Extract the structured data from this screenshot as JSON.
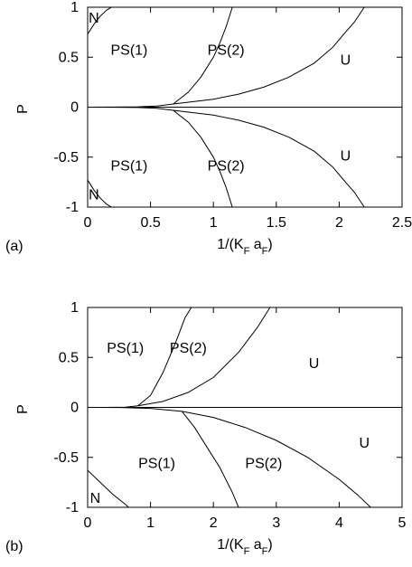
{
  "chart_data": [
    {
      "type": "line",
      "panel_label": "(a)",
      "xlabel": "1/(K_F a_F)",
      "ylabel": "P",
      "xlim": [
        0,
        2.5
      ],
      "ylim": [
        -1,
        1
      ],
      "x_ticks": [
        0,
        0.5,
        1,
        1.5,
        2,
        2.5
      ],
      "x_tick_labels": [
        "0",
        "0.5",
        "1",
        "1.5",
        "2",
        "2.5"
      ],
      "y_ticks": [
        -1,
        -0.5,
        0,
        0.5,
        1
      ],
      "y_tick_labels": [
        "-1",
        "-0.5",
        "0",
        "0.5",
        "1"
      ],
      "grid": false,
      "regions": [
        {
          "label": "N",
          "x": 0.05,
          "y": 0.9
        },
        {
          "label": "PS(1)",
          "x": 0.33,
          "y": 0.58
        },
        {
          "label": "PS(2)",
          "x": 1.1,
          "y": 0.58
        },
        {
          "label": "U",
          "x": 2.05,
          "y": 0.48
        },
        {
          "label": "PS(1)",
          "x": 0.33,
          "y": -0.58
        },
        {
          "label": "PS(2)",
          "x": 1.1,
          "y": -0.58
        },
        {
          "label": "U",
          "x": 2.05,
          "y": -0.48
        },
        {
          "label": "N",
          "x": 0.05,
          "y": -0.87
        }
      ],
      "series": [
        {
          "points": [
            [
              0,
              0.73
            ],
            [
              0.05,
              0.83
            ],
            [
              0.1,
              0.91
            ],
            [
              0.15,
              0.97
            ],
            [
              0.19,
              1.0
            ]
          ]
        },
        {
          "points": [
            [
              0,
              0
            ],
            [
              0.2,
              0.0005
            ],
            [
              0.4,
              0.004
            ],
            [
              0.55,
              0.012
            ],
            [
              0.68,
              0.032
            ]
          ]
        },
        {
          "points": [
            [
              0.68,
              0.032
            ],
            [
              0.8,
              0.15
            ],
            [
              0.9,
              0.3
            ],
            [
              1.0,
              0.5
            ],
            [
              1.05,
              0.64
            ],
            [
              1.1,
              0.8
            ],
            [
              1.15,
              1.0
            ]
          ]
        },
        {
          "points": [
            [
              0.68,
              0.032
            ],
            [
              1.0,
              0.08
            ],
            [
              1.2,
              0.13
            ],
            [
              1.4,
              0.2
            ],
            [
              1.6,
              0.3
            ],
            [
              1.8,
              0.44
            ],
            [
              1.95,
              0.6
            ],
            [
              2.05,
              0.75
            ],
            [
              2.12,
              0.85
            ],
            [
              2.2,
              1.0
            ]
          ]
        },
        {
          "points": [
            [
              0,
              0
            ],
            [
              0.2,
              -0.0005
            ],
            [
              0.4,
              -0.004
            ],
            [
              0.55,
              -0.012
            ],
            [
              0.68,
              -0.032
            ]
          ]
        },
        {
          "points": [
            [
              0.68,
              -0.032
            ],
            [
              0.8,
              -0.15
            ],
            [
              0.9,
              -0.3
            ],
            [
              1.0,
              -0.5
            ],
            [
              1.05,
              -0.64
            ],
            [
              1.1,
              -0.8
            ],
            [
              1.15,
              -1.0
            ]
          ]
        },
        {
          "points": [
            [
              0.68,
              -0.032
            ],
            [
              1.0,
              -0.08
            ],
            [
              1.2,
              -0.13
            ],
            [
              1.4,
              -0.2
            ],
            [
              1.6,
              -0.3
            ],
            [
              1.8,
              -0.44
            ],
            [
              1.95,
              -0.6
            ],
            [
              2.05,
              -0.75
            ],
            [
              2.12,
              -0.85
            ],
            [
              2.2,
              -1.0
            ]
          ]
        },
        {
          "points": [
            [
              0,
              -0.73
            ],
            [
              0.05,
              -0.83
            ],
            [
              0.1,
              -0.91
            ],
            [
              0.15,
              -0.97
            ],
            [
              0.19,
              -1.0
            ]
          ]
        }
      ],
      "zero_line": true
    },
    {
      "type": "line",
      "panel_label": "(b)",
      "xlabel": "1/(K_F a_F)",
      "ylabel": "P",
      "xlim": [
        0,
        5
      ],
      "ylim": [
        -1,
        1
      ],
      "x_ticks": [
        0,
        1,
        2,
        3,
        4,
        5
      ],
      "x_tick_labels": [
        "0",
        "1",
        "2",
        "3",
        "4",
        "5"
      ],
      "y_ticks": [
        -1,
        -0.5,
        0,
        0.5,
        1
      ],
      "y_tick_labels": [
        "-1",
        "-0.5",
        "0",
        "0.5",
        "1"
      ],
      "grid": false,
      "regions": [
        {
          "label": "PS(1)",
          "x": 0.6,
          "y": 0.6
        },
        {
          "label": "PS(2)",
          "x": 1.6,
          "y": 0.6
        },
        {
          "label": "U",
          "x": 3.6,
          "y": 0.45
        },
        {
          "label": "PS(1)",
          "x": 1.1,
          "y": -0.55
        },
        {
          "label": "PS(2)",
          "x": 2.8,
          "y": -0.55
        },
        {
          "label": "U",
          "x": 4.4,
          "y": -0.35
        },
        {
          "label": "N",
          "x": 0.12,
          "y": -0.9
        }
      ],
      "series": [
        {
          "points": [
            [
              0,
              0
            ],
            [
              0.3,
              0.0003
            ],
            [
              0.6,
              0.003
            ],
            [
              0.8,
              0.015
            ]
          ]
        },
        {
          "points": [
            [
              0.8,
              0.015
            ],
            [
              1.0,
              0.12
            ],
            [
              1.2,
              0.35
            ],
            [
              1.4,
              0.65
            ],
            [
              1.55,
              0.9
            ],
            [
              1.65,
              1.0
            ]
          ]
        },
        {
          "points": [
            [
              0.8,
              0.015
            ],
            [
              1.2,
              0.06
            ],
            [
              1.6,
              0.15
            ],
            [
              2.0,
              0.3
            ],
            [
              2.4,
              0.55
            ],
            [
              2.7,
              0.8
            ],
            [
              2.9,
              1.0
            ]
          ]
        },
        {
          "points": [
            [
              0,
              0
            ],
            [
              0.5,
              -0.001
            ],
            [
              1.0,
              -0.01
            ],
            [
              1.5,
              -0.04
            ]
          ]
        },
        {
          "points": [
            [
              1.5,
              -0.04
            ],
            [
              1.7,
              -0.2
            ],
            [
              1.9,
              -0.4
            ],
            [
              2.1,
              -0.6
            ],
            [
              2.3,
              -0.85
            ],
            [
              2.4,
              -1.0
            ]
          ]
        },
        {
          "points": [
            [
              1.5,
              -0.04
            ],
            [
              2.0,
              -0.1
            ],
            [
              2.5,
              -0.2
            ],
            [
              3.0,
              -0.33
            ],
            [
              3.5,
              -0.5
            ],
            [
              4.0,
              -0.72
            ],
            [
              4.3,
              -0.88
            ],
            [
              4.5,
              -1.0
            ]
          ]
        },
        {
          "points": [
            [
              0,
              -0.63
            ],
            [
              0.2,
              -0.75
            ],
            [
              0.4,
              -0.87
            ],
            [
              0.6,
              -0.97
            ],
            [
              0.65,
              -1.0
            ]
          ]
        }
      ],
      "zero_line": true
    }
  ]
}
